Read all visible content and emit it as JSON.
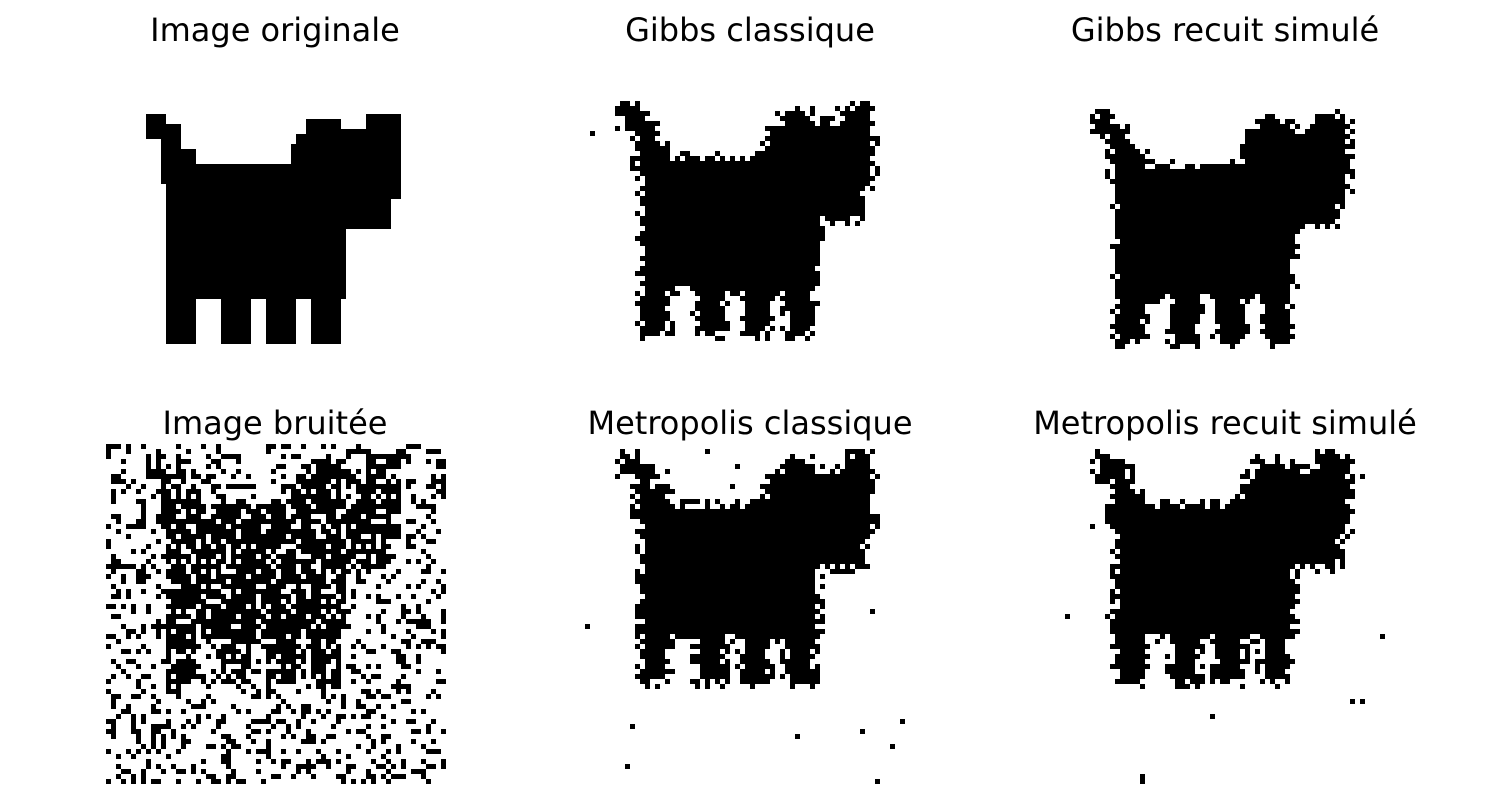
{
  "figure": {
    "panels": [
      {
        "id": "original",
        "title": "Image originale",
        "noise": "none"
      },
      {
        "id": "gibbs-classic",
        "title": "Gibbs classique",
        "noise": "light"
      },
      {
        "id": "gibbs-annealing",
        "title": "Gibbs recuit simulé",
        "noise": "smooth"
      },
      {
        "id": "noisy",
        "title": "Image bruitée",
        "noise": "heavy"
      },
      {
        "id": "metropolis-classic",
        "title": "Metropolis classique",
        "noise": "medium"
      },
      {
        "id": "metropolis-annealing",
        "title": "Metropolis recuit simulé",
        "noise": "medium"
      }
    ]
  }
}
